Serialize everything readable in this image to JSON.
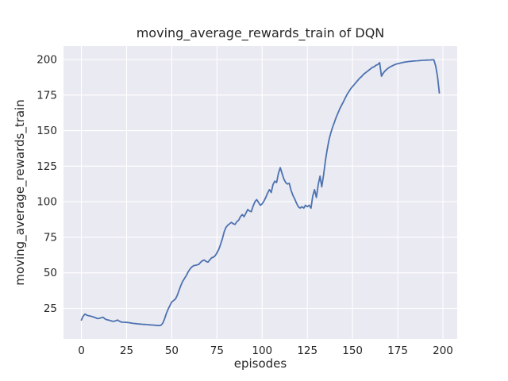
{
  "chart_data": {
    "type": "line",
    "title": "moving_average_rewards_train of DQN",
    "xlabel": "episodes",
    "ylabel": "moving_average_rewards_train",
    "xlim": [
      -9.9,
      207.9
    ],
    "ylim": [
      3.5,
      209.5
    ],
    "xticks": [
      0,
      25,
      50,
      75,
      100,
      125,
      150,
      175,
      200
    ],
    "yticks": [
      25,
      50,
      75,
      100,
      125,
      150,
      175,
      200
    ],
    "grid": true,
    "legend": "none",
    "style": {
      "line_color": "#4C72B0",
      "axes_background": "#EAEAF2",
      "grid_color": "#FFFFFF",
      "text_color": "#262626"
    },
    "series": [
      {
        "name": "moving_average_rewards_train",
        "points": [
          [
            0,
            16.8
          ],
          [
            1,
            19.5
          ],
          [
            2,
            21
          ],
          [
            3,
            20.2
          ],
          [
            4,
            19.8
          ],
          [
            5,
            19.6
          ],
          [
            6,
            19.2
          ],
          [
            7,
            18.8
          ],
          [
            8,
            18.3
          ],
          [
            9,
            17.8
          ],
          [
            10,
            18
          ],
          [
            11,
            18.4
          ],
          [
            12,
            18.7
          ],
          [
            13,
            17.6
          ],
          [
            14,
            17
          ],
          [
            15,
            16.8
          ],
          [
            16,
            16.4
          ],
          [
            17,
            16
          ],
          [
            18,
            15.9
          ],
          [
            19,
            16.3
          ],
          [
            20,
            16.8
          ],
          [
            21,
            16
          ],
          [
            22,
            15.4
          ],
          [
            23,
            15.3
          ],
          [
            24,
            15.2
          ],
          [
            25,
            15.1
          ],
          [
            26,
            15
          ],
          [
            27,
            14.8
          ],
          [
            28,
            14.6
          ],
          [
            29,
            14.4
          ],
          [
            30,
            14.3
          ],
          [
            31,
            14.1
          ],
          [
            32,
            14
          ],
          [
            33,
            13.9
          ],
          [
            34,
            13.8
          ],
          [
            35,
            13.7
          ],
          [
            36,
            13.6
          ],
          [
            37,
            13.5
          ],
          [
            38,
            13.4
          ],
          [
            39,
            13.3
          ],
          [
            40,
            13.2
          ],
          [
            41,
            13.1
          ],
          [
            42,
            13
          ],
          [
            43,
            12.9
          ],
          [
            44,
            13.1
          ],
          [
            45,
            14.5
          ],
          [
            46,
            17.5
          ],
          [
            47,
            21.5
          ],
          [
            48,
            24.5
          ],
          [
            49,
            27
          ],
          [
            50,
            29.5
          ],
          [
            51,
            30.5
          ],
          [
            52,
            31.5
          ],
          [
            53,
            34
          ],
          [
            54,
            37.5
          ],
          [
            55,
            41
          ],
          [
            56,
            44
          ],
          [
            57,
            46
          ],
          [
            58,
            48
          ],
          [
            59,
            50.5
          ],
          [
            60,
            52.5
          ],
          [
            61,
            54
          ],
          [
            62,
            55
          ],
          [
            63,
            55.3
          ],
          [
            64,
            55.6
          ],
          [
            65,
            56
          ],
          [
            66,
            57.5
          ],
          [
            67,
            58.5
          ],
          [
            68,
            59
          ],
          [
            69,
            58
          ],
          [
            70,
            57.5
          ],
          [
            71,
            59
          ],
          [
            72,
            60.5
          ],
          [
            73,
            61
          ],
          [
            74,
            62
          ],
          [
            75,
            64
          ],
          [
            76,
            66.5
          ],
          [
            77,
            70
          ],
          [
            78,
            74
          ],
          [
            79,
            79
          ],
          [
            80,
            82
          ],
          [
            81,
            83.5
          ],
          [
            82,
            84.5
          ],
          [
            83,
            85.5
          ],
          [
            84,
            84.5
          ],
          [
            85,
            84
          ],
          [
            86,
            86
          ],
          [
            87,
            87
          ],
          [
            88,
            89.5
          ],
          [
            89,
            91
          ],
          [
            90,
            89.5
          ],
          [
            91,
            92
          ],
          [
            92,
            94.5
          ],
          [
            93,
            93.5
          ],
          [
            94,
            93
          ],
          [
            95,
            97
          ],
          [
            96,
            100
          ],
          [
            97,
            101.5
          ],
          [
            98,
            99.5
          ],
          [
            99,
            97.5
          ],
          [
            100,
            98.5
          ],
          [
            101,
            100.5
          ],
          [
            102,
            103
          ],
          [
            103,
            106
          ],
          [
            104,
            108.5
          ],
          [
            105,
            106.5
          ],
          [
            106,
            112
          ],
          [
            107,
            114.5
          ],
          [
            108,
            113.5
          ],
          [
            109,
            120
          ],
          [
            110,
            124
          ],
          [
            111,
            120
          ],
          [
            112,
            116
          ],
          [
            113,
            113.5
          ],
          [
            114,
            112.5
          ],
          [
            115,
            113
          ],
          [
            116,
            108
          ],
          [
            117,
            104.5
          ],
          [
            118,
            102
          ],
          [
            119,
            99
          ],
          [
            120,
            96.5
          ],
          [
            121,
            95.5
          ],
          [
            122,
            96.5
          ],
          [
            123,
            95.5
          ],
          [
            124,
            97.5
          ],
          [
            125,
            96.5
          ],
          [
            126,
            97.5
          ],
          [
            127,
            95.5
          ],
          [
            128,
            104
          ],
          [
            129,
            108.5
          ],
          [
            130,
            103
          ],
          [
            131,
            112
          ],
          [
            132,
            118
          ],
          [
            133,
            110.5
          ],
          [
            134,
            119
          ],
          [
            135,
            129
          ],
          [
            136,
            137
          ],
          [
            137,
            143.5
          ],
          [
            138,
            148.5
          ],
          [
            139,
            152.5
          ],
          [
            140,
            156
          ],
          [
            141,
            159.5
          ],
          [
            142,
            162.5
          ],
          [
            143,
            165.5
          ],
          [
            144,
            168
          ],
          [
            145,
            170.5
          ],
          [
            146,
            173
          ],
          [
            147,
            175.5
          ],
          [
            148,
            177.5
          ],
          [
            149,
            179.5
          ],
          [
            150,
            181
          ],
          [
            151,
            182.5
          ],
          [
            152,
            184
          ],
          [
            153,
            185.5
          ],
          [
            154,
            187
          ],
          [
            155,
            188
          ],
          [
            156,
            189.5
          ],
          [
            157,
            190.5
          ],
          [
            158,
            191.5
          ],
          [
            159,
            192.5
          ],
          [
            160,
            193.5
          ],
          [
            161,
            194.5
          ],
          [
            162,
            195
          ],
          [
            163,
            196
          ],
          [
            164,
            196.5
          ],
          [
            165,
            197.8
          ],
          [
            166,
            188.3
          ],
          [
            167,
            190.5
          ],
          [
            168,
            192
          ],
          [
            169,
            193.2
          ],
          [
            170,
            194.2
          ],
          [
            171,
            195
          ],
          [
            172,
            195.6
          ],
          [
            173,
            196.2
          ],
          [
            174,
            196.7
          ],
          [
            175,
            197.1
          ],
          [
            176,
            197.4
          ],
          [
            177,
            197.7
          ],
          [
            178,
            198
          ],
          [
            179,
            198.2
          ],
          [
            180,
            198.4
          ],
          [
            181,
            198.6
          ],
          [
            182,
            198.7
          ],
          [
            183,
            198.9
          ],
          [
            184,
            199
          ],
          [
            185,
            199.1
          ],
          [
            186,
            199.2
          ],
          [
            187,
            199.3
          ],
          [
            188,
            199.4
          ],
          [
            189,
            199.5
          ],
          [
            190,
            199.5
          ],
          [
            191,
            199.6
          ],
          [
            192,
            199.7
          ],
          [
            193,
            199.7
          ],
          [
            194,
            199.8
          ],
          [
            195,
            199.8
          ],
          [
            196,
            195.5
          ],
          [
            197,
            188
          ],
          [
            198,
            176.5
          ]
        ]
      }
    ]
  }
}
